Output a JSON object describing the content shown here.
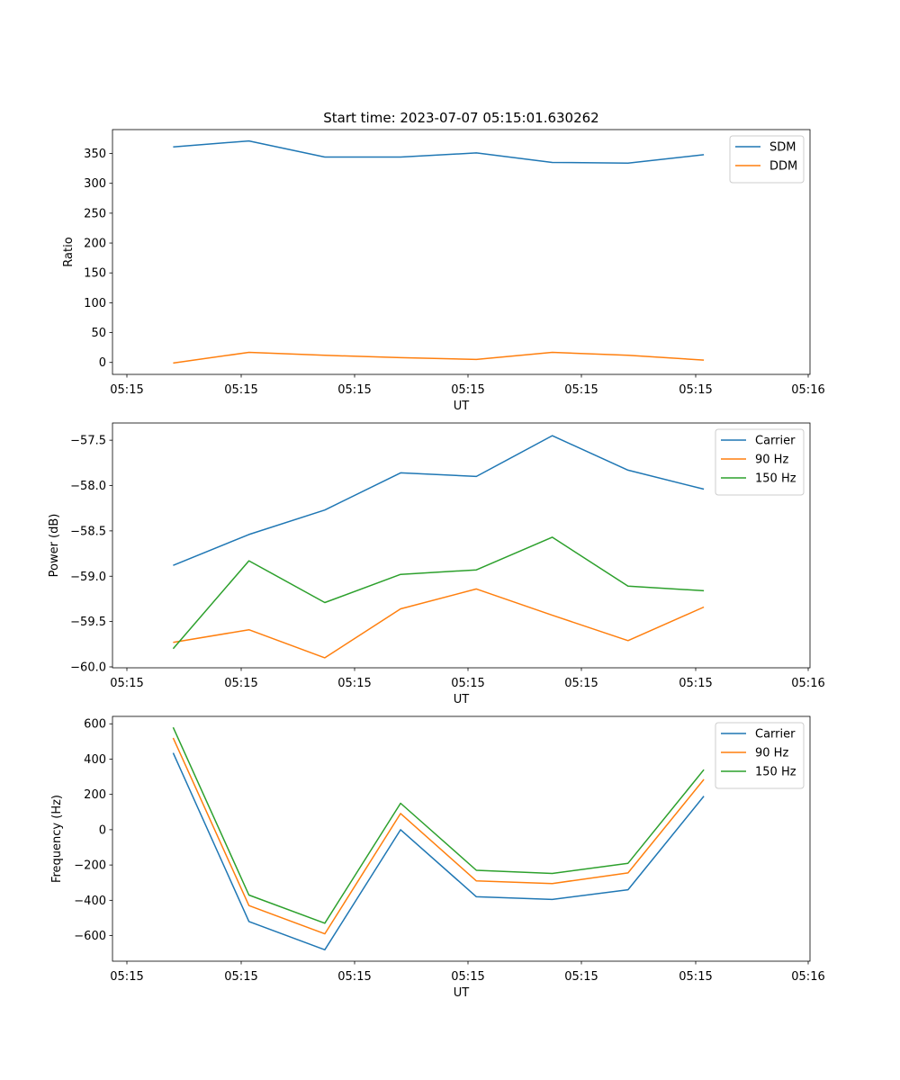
{
  "figure_title": "Start time: 2023-07-07 05:15:01.630262",
  "colors": {
    "blue": "#1f77b4",
    "orange": "#ff7f0e",
    "green": "#2ca02c",
    "frame": "#000000",
    "legend_border": "#cccccc"
  },
  "x_tick_labels": [
    "05:15",
    "05:15",
    "05:15",
    "05:15",
    "05:15",
    "05:15",
    "05:16"
  ],
  "chart_data": [
    {
      "type": "line",
      "xlabel": "UT",
      "ylabel": "Ratio",
      "x": [
        1,
        2,
        3,
        4,
        5,
        6,
        7,
        8
      ],
      "xlim": [
        0.2,
        9.4
      ],
      "ylim": [
        -20,
        390
      ],
      "yticks": [
        0,
        50,
        100,
        150,
        200,
        250,
        300,
        350
      ],
      "ytick_labels": [
        "0",
        "50",
        "100",
        "150",
        "200",
        "250",
        "300",
        "350"
      ],
      "legend_position": "top-right",
      "series": [
        {
          "name": "SDM",
          "color": "#1f77b4",
          "values": [
            361,
            371,
            344,
            344,
            351,
            335,
            334,
            348
          ]
        },
        {
          "name": "DDM",
          "color": "#ff7f0e",
          "values": [
            -1,
            17,
            12,
            8,
            5,
            17,
            12,
            4
          ]
        }
      ]
    },
    {
      "type": "line",
      "xlabel": "UT",
      "ylabel": "Power (dB)",
      "x": [
        1,
        2,
        3,
        4,
        5,
        6,
        7,
        8
      ],
      "xlim": [
        0.2,
        9.4
      ],
      "ylim": [
        -60.01,
        -57.31
      ],
      "yticks": [
        -60.0,
        -59.5,
        -59.0,
        -58.5,
        -58.0,
        -57.5
      ],
      "ytick_labels": [
        "−60.0",
        "−59.5",
        "−59.0",
        "−58.5",
        "−58.0",
        "−57.5"
      ],
      "legend_position": "top-right",
      "series": [
        {
          "name": "Carrier",
          "color": "#1f77b4",
          "values": [
            -58.88,
            -58.54,
            -58.27,
            -57.86,
            -57.9,
            -57.45,
            -57.83,
            -58.04
          ]
        },
        {
          "name": "90 Hz",
          "color": "#ff7f0e",
          "values": [
            -59.73,
            -59.59,
            -59.9,
            -59.36,
            -59.14,
            -59.43,
            -59.71,
            -59.34
          ]
        },
        {
          "name": "150 Hz",
          "color": "#2ca02c",
          "values": [
            -59.8,
            -58.83,
            -59.29,
            -58.98,
            -58.93,
            -58.57,
            -59.11,
            -59.16
          ]
        }
      ]
    },
    {
      "type": "line",
      "xlabel": "UT",
      "ylabel": "Frequency (Hz)",
      "x": [
        1,
        2,
        3,
        4,
        5,
        6,
        7,
        8
      ],
      "xlim": [
        0.2,
        9.4
      ],
      "ylim": [
        -745,
        642
      ],
      "yticks": [
        -600,
        -400,
        -200,
        0,
        200,
        400,
        600
      ],
      "ytick_labels": [
        "−600",
        "−400",
        "−200",
        "0",
        "200",
        "400",
        "600"
      ],
      "legend_position": "top-right",
      "series": [
        {
          "name": "Carrier",
          "color": "#1f77b4",
          "values": [
            435,
            -520,
            -680,
            0,
            -380,
            -395,
            -340,
            190
          ]
        },
        {
          "name": "90 Hz",
          "color": "#ff7f0e",
          "values": [
            520,
            -430,
            -590,
            92,
            -290,
            -305,
            -245,
            285
          ]
        },
        {
          "name": "150 Hz",
          "color": "#2ca02c",
          "values": [
            580,
            -370,
            -530,
            150,
            -230,
            -248,
            -190,
            340
          ]
        }
      ]
    }
  ]
}
